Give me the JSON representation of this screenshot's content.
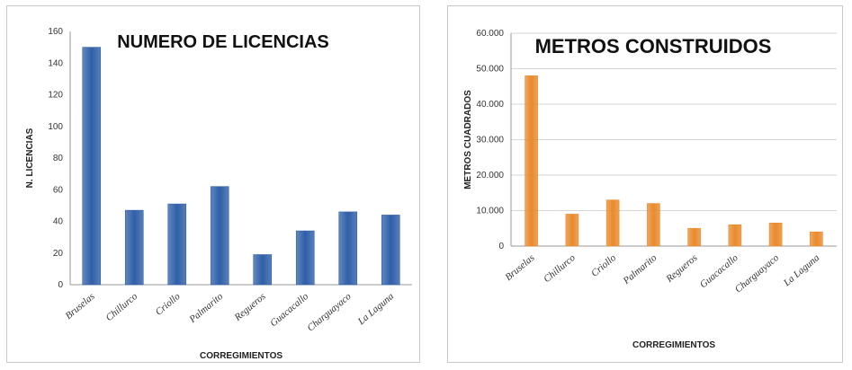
{
  "chart_data": [
    {
      "type": "bar",
      "title": "NUMERO DE LICENCIAS",
      "xlabel": "CORREGIMIENTOS",
      "ylabel": "N. LICENCIAS",
      "ylim": [
        0,
        160
      ],
      "yticks": [
        "0",
        "20",
        "40",
        "60",
        "80",
        "100",
        "120",
        "140",
        "160"
      ],
      "categories": [
        "Bruselas",
        "Chillurco",
        "Criollo",
        "Palmarito",
        "Regueros",
        "Guacacallo",
        "Charguayaco",
        "La Laguna"
      ],
      "values": [
        150,
        47,
        51,
        62,
        19,
        34,
        46,
        44
      ],
      "color": "#2f5fa8",
      "grid": false
    },
    {
      "type": "bar",
      "title": "METROS CONSTRUIDOS",
      "xlabel": "CORREGIMIENTOS",
      "ylabel": "METROS CUADRADOS",
      "ylim": [
        0,
        60000
      ],
      "yticks": [
        "0",
        "10.000",
        "20.000",
        "30.000",
        "40.000",
        "50.000",
        "60.000"
      ],
      "categories": [
        "Bruselas",
        "Chillurco",
        "Criollo",
        "Palmarito",
        "Regueros",
        "Guacacallo",
        "Charguayaco",
        "La Laguna"
      ],
      "values": [
        48000,
        9000,
        13000,
        12000,
        5000,
        6000,
        6500,
        4000
      ],
      "color": "#e98a2c",
      "grid": true
    }
  ]
}
